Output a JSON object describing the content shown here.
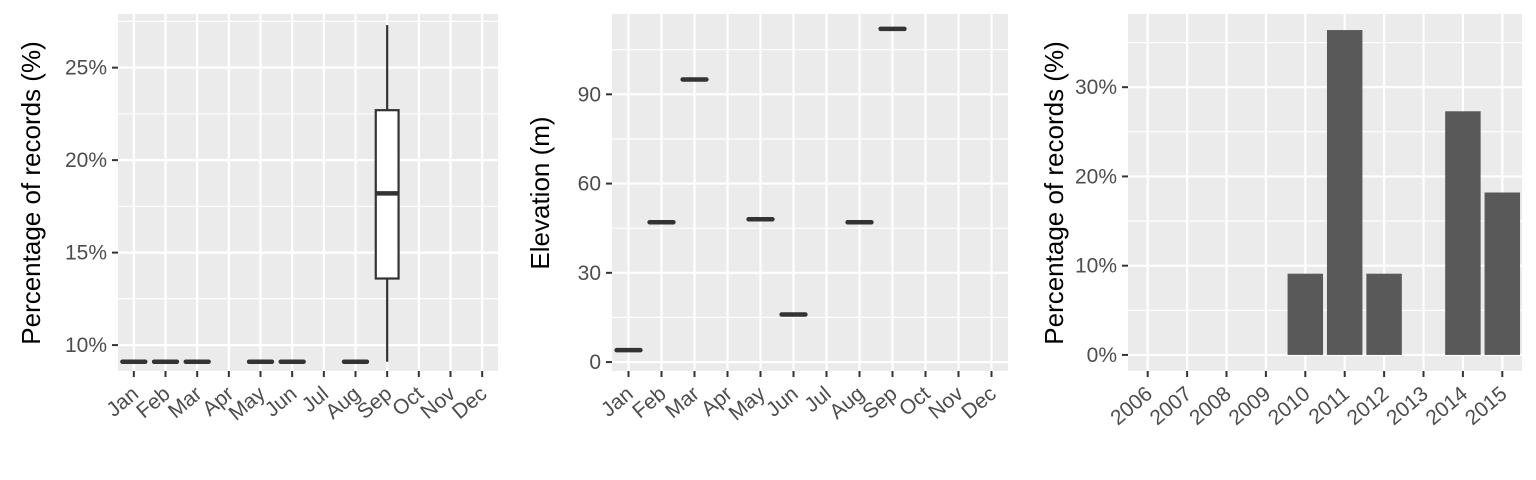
{
  "chart_data": [
    {
      "type": "box",
      "ylabel": "Percentage of records (%)",
      "ylim": [
        8.6,
        27.9
      ],
      "yticks": [
        10,
        15,
        20,
        25
      ],
      "ytick_labels": [
        "10%",
        "15%",
        "20%",
        "25%"
      ],
      "categories": [
        "Jan",
        "Feb",
        "Mar",
        "Apr",
        "May",
        "Jun",
        "Jul",
        "Aug",
        "Sep",
        "Oct",
        "Nov",
        "Dec"
      ],
      "single_values": [
        {
          "category": "Jan",
          "value": 9.1
        },
        {
          "category": "Feb",
          "value": 9.1
        },
        {
          "category": "Mar",
          "value": 9.1
        },
        {
          "category": "May",
          "value": 9.1
        },
        {
          "category": "Jun",
          "value": 9.1
        },
        {
          "category": "Aug",
          "value": 9.1
        }
      ],
      "boxes": [
        {
          "category": "Sep",
          "min": 9.1,
          "q1": 13.6,
          "median": 18.2,
          "q3": 22.7,
          "max": 27.3
        }
      ],
      "grid": true
    },
    {
      "type": "box",
      "ylabel": "Elevation (m)",
      "ylim": [
        -3,
        117
      ],
      "yticks": [
        0,
        30,
        60,
        90
      ],
      "ytick_labels": [
        "0",
        "30",
        "60",
        "90"
      ],
      "categories": [
        "Jan",
        "Feb",
        "Mar",
        "Apr",
        "May",
        "Jun",
        "Jul",
        "Aug",
        "Sep",
        "Oct",
        "Nov",
        "Dec"
      ],
      "single_values": [
        {
          "category": "Jan",
          "value": 4
        },
        {
          "category": "Feb",
          "value": 47
        },
        {
          "category": "Mar",
          "value": 95
        },
        {
          "category": "May",
          "value": 48
        },
        {
          "category": "Jun",
          "value": 16
        },
        {
          "category": "Aug",
          "value": 47
        },
        {
          "category": "Sep",
          "value": 112
        }
      ],
      "grid": true
    },
    {
      "type": "bar",
      "ylabel": "Percentage of records (%)",
      "ylim": [
        -1.8,
        38.2
      ],
      "yticks": [
        0,
        10,
        20,
        30
      ],
      "ytick_labels": [
        "0%",
        "10%",
        "20%",
        "30%"
      ],
      "categories": [
        "2006",
        "2007",
        "2008",
        "2009",
        "2010",
        "2011",
        "2012",
        "2013",
        "2014",
        "2015"
      ],
      "values": [
        0,
        0,
        0,
        0,
        9.1,
        36.4,
        9.1,
        0,
        27.3,
        18.2
      ],
      "grid": true
    }
  ]
}
